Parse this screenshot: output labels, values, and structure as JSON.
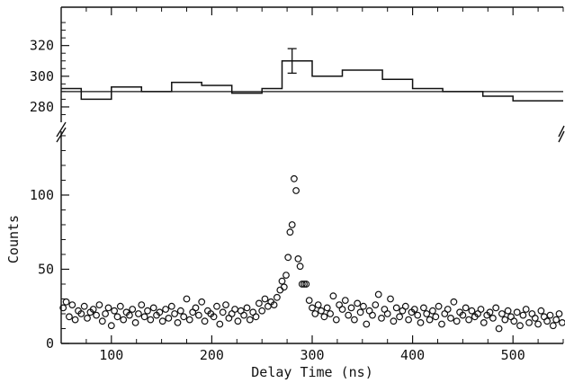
{
  "chart_data": [
    {
      "type": "line",
      "panel": "upper",
      "step": true,
      "xlabel": "",
      "ylabel": "",
      "xlim": [
        50,
        550
      ],
      "ylim": [
        270,
        345
      ],
      "yticks": [
        280,
        300,
        320
      ],
      "ytick_labels": [
        "280",
        "300",
        "320"
      ],
      "reference_level": 290,
      "series": [
        {
          "x": [
            50,
            70,
            100,
            130,
            160,
            190,
            220,
            250,
            270,
            300,
            330,
            370,
            400,
            430,
            470,
            500,
            550
          ],
          "values": [
            292,
            285,
            293,
            290,
            296,
            294,
            289,
            292,
            310,
            300,
            304,
            298,
            292,
            290,
            287,
            284,
            279
          ]
        }
      ],
      "error_bar": {
        "x": 280,
        "value": 310,
        "low": 302,
        "high": 318
      }
    },
    {
      "type": "scatter",
      "panel": "lower",
      "xlabel": "Delay Time (ns)",
      "ylabel": "Counts",
      "xlim": [
        50,
        550
      ],
      "ylim": [
        0,
        143
      ],
      "xticks": [
        100,
        200,
        300,
        400,
        500
      ],
      "xtick_labels": [
        "100",
        "200",
        "300",
        "400",
        "500"
      ],
      "yticks": [
        0,
        50,
        100
      ],
      "ytick_labels": [
        "0",
        "50",
        "100"
      ],
      "series": [
        {
          "x": [
            52,
            55,
            58,
            61,
            64,
            67,
            70,
            73,
            76,
            79,
            82,
            85,
            88,
            91,
            94,
            97,
            100,
            103,
            106,
            109,
            112,
            115,
            118,
            121,
            124,
            127,
            130,
            133,
            136,
            139,
            142,
            145,
            148,
            151,
            154,
            157,
            160,
            163,
            166,
            169,
            172,
            175,
            178,
            181,
            184,
            187,
            190,
            193,
            196,
            199,
            202,
            205,
            208,
            211,
            214,
            217,
            220,
            223,
            226,
            229,
            232,
            235,
            238,
            241,
            244,
            247,
            250,
            253,
            256,
            259,
            262,
            265,
            268,
            270,
            272,
            274,
            276,
            278,
            280,
            282,
            284,
            286,
            288,
            290,
            292,
            294,
            297,
            300,
            303,
            306,
            309,
            312,
            315,
            318,
            321,
            324,
            327,
            330,
            333,
            336,
            339,
            342,
            345,
            348,
            351,
            354,
            357,
            360,
            363,
            366,
            369,
            372,
            375,
            378,
            381,
            384,
            387,
            390,
            393,
            396,
            399,
            402,
            405,
            408,
            411,
            414,
            417,
            420,
            423,
            426,
            429,
            432,
            435,
            438,
            441,
            444,
            447,
            450,
            453,
            456,
            459,
            462,
            465,
            468,
            471,
            474,
            477,
            480,
            483,
            486,
            489,
            492,
            495,
            498,
            501,
            504,
            507,
            510,
            513,
            516,
            519,
            522,
            525,
            528,
            531,
            534,
            537,
            540,
            543,
            546,
            549
          ],
          "values": [
            24,
            28,
            18,
            26,
            16,
            22,
            20,
            25,
            17,
            21,
            23,
            19,
            26,
            15,
            20,
            24,
            12,
            22,
            18,
            25,
            16,
            21,
            19,
            23,
            14,
            20,
            26,
            18,
            22,
            16,
            24,
            19,
            21,
            15,
            23,
            17,
            25,
            20,
            14,
            22,
            18,
            30,
            16,
            21,
            24,
            19,
            28,
            15,
            22,
            20,
            18,
            25,
            13,
            21,
            26,
            17,
            20,
            23,
            15,
            22,
            19,
            24,
            16,
            21,
            18,
            27,
            22,
            30,
            25,
            28,
            26,
            31,
            36,
            42,
            38,
            46,
            58,
            75,
            80,
            111,
            103,
            57,
            52,
            40,
            40,
            40,
            29,
            24,
            20,
            26,
            22,
            18,
            24,
            20,
            32,
            16,
            26,
            23,
            29,
            19,
            24,
            16,
            27,
            21,
            25,
            13,
            22,
            19,
            26,
            33,
            17,
            23,
            20,
            30,
            15,
            24,
            18,
            22,
            25,
            16,
            21,
            23,
            19,
            14,
            24,
            20,
            16,
            22,
            18,
            25,
            13,
            20,
            23,
            17,
            28,
            15,
            21,
            19,
            24,
            16,
            22,
            18,
            20,
            23,
            14,
            19,
            21,
            17,
            24,
            10,
            20,
            16,
            22,
            18,
            15,
            21,
            12,
            19,
            23,
            14,
            20,
            17,
            13,
            22,
            18,
            15,
            19,
            12,
            16,
            20,
            14
          ]
        }
      ]
    }
  ]
}
